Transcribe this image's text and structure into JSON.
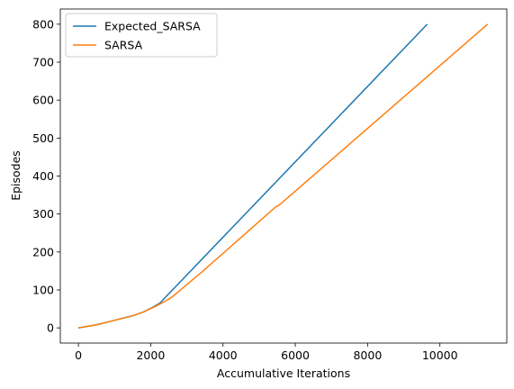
{
  "chart_data": {
    "type": "line",
    "xlabel": "Accumulative Iterations",
    "ylabel": "Episodes",
    "xlim": [
      -500,
      11850
    ],
    "ylim": [
      -40,
      840
    ],
    "xticks": [
      0,
      2000,
      4000,
      6000,
      8000,
      10000
    ],
    "yticks": [
      0,
      100,
      200,
      300,
      400,
      500,
      600,
      700,
      800
    ],
    "xtick_labels": [
      "0",
      "2000",
      "4000",
      "6000",
      "8000",
      "10000"
    ],
    "ytick_labels": [
      "0",
      "100",
      "200",
      "300",
      "400",
      "500",
      "600",
      "700",
      "800"
    ],
    "legend_position": "upper-left",
    "series": [
      {
        "name": "Expected_SARSA",
        "color": "#1f77b4",
        "points": [
          [
            0,
            0
          ],
          [
            500,
            8
          ],
          [
            1000,
            20
          ],
          [
            1500,
            32
          ],
          [
            1800,
            42
          ],
          [
            2050,
            54
          ],
          [
            2250,
            65
          ],
          [
            9650,
            800
          ]
        ]
      },
      {
        "name": "SARSA",
        "color": "#ff7f0e",
        "points": [
          [
            0,
            0
          ],
          [
            500,
            8
          ],
          [
            1000,
            20
          ],
          [
            1500,
            32
          ],
          [
            1800,
            42
          ],
          [
            2100,
            55
          ],
          [
            2400,
            70
          ],
          [
            2600,
            82
          ],
          [
            3400,
            146
          ],
          [
            5450,
            318
          ],
          [
            5550,
            323
          ],
          [
            11320,
            800
          ]
        ]
      }
    ]
  }
}
